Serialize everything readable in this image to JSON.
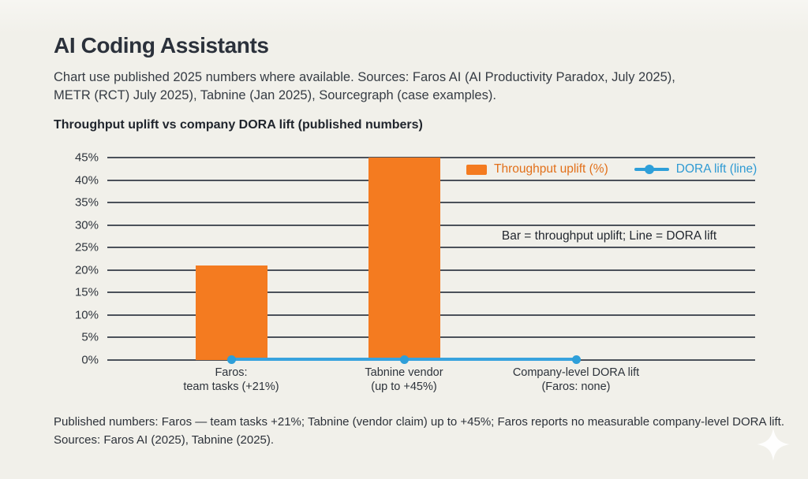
{
  "page": {
    "title": "AI Coding Assistants",
    "subtitle_lines": [
      "Chart use published 2025 numbers where available. Sources: Faros AI (AI Productivity Paradox, July 2025),",
      "METR (RCT) July 2025), Tabnine (Jan 2025), Sourcegraph (case examples)."
    ],
    "chart_heading": "Throughput uplift vs company DORA lift (published numbers)",
    "footnote_lines": [
      "Published numbers: Faros — team tasks +21%; Tabnine (vendor claim) up to +45%; Faros reports no measurable company-level DORA lift.",
      "Sources: Faros AI (2025), Tabnine (2025)."
    ]
  },
  "colors": {
    "background": "#f1f0ea",
    "bar_orange": "#f47b20",
    "line_blue": "#2e9fd9",
    "grid": "#4b515a",
    "text_dark": "#2b313b"
  },
  "chart_data": {
    "type": "bar",
    "subtype": "bar + line combo",
    "title": "Throughput uplift vs company DORA lift (published numbers)",
    "categories": [
      {
        "line1": "Faros:",
        "line2": "team tasks (+21%)"
      },
      {
        "line1": "Tabnine vendor",
        "line2": "(up to +45%)"
      },
      {
        "line1": "Company-level DORA lift",
        "line2": "(Faros: none)"
      }
    ],
    "series": [
      {
        "name": "Throughput uplift (%)",
        "type": "bar",
        "color": "#f47b20",
        "values": [
          21,
          45,
          null
        ]
      },
      {
        "name": "DORA lift (line)",
        "type": "line",
        "color": "#2e9fd9",
        "values": [
          0,
          0,
          0
        ]
      }
    ],
    "xlabel": "",
    "ylabel": "",
    "ylim": [
      0,
      45
    ],
    "ytick_step": 5,
    "yticks": [
      "0%",
      "5%",
      "10%",
      "15%",
      "20%",
      "25%",
      "30%",
      "35%",
      "40%",
      "45%"
    ],
    "grid": true,
    "legend": [
      "Throughput uplift (%)",
      "DORA lift (line)"
    ],
    "legend_position": "top-right-inside",
    "annotation": "Bar = throughput uplift; Line = DORA lift"
  }
}
